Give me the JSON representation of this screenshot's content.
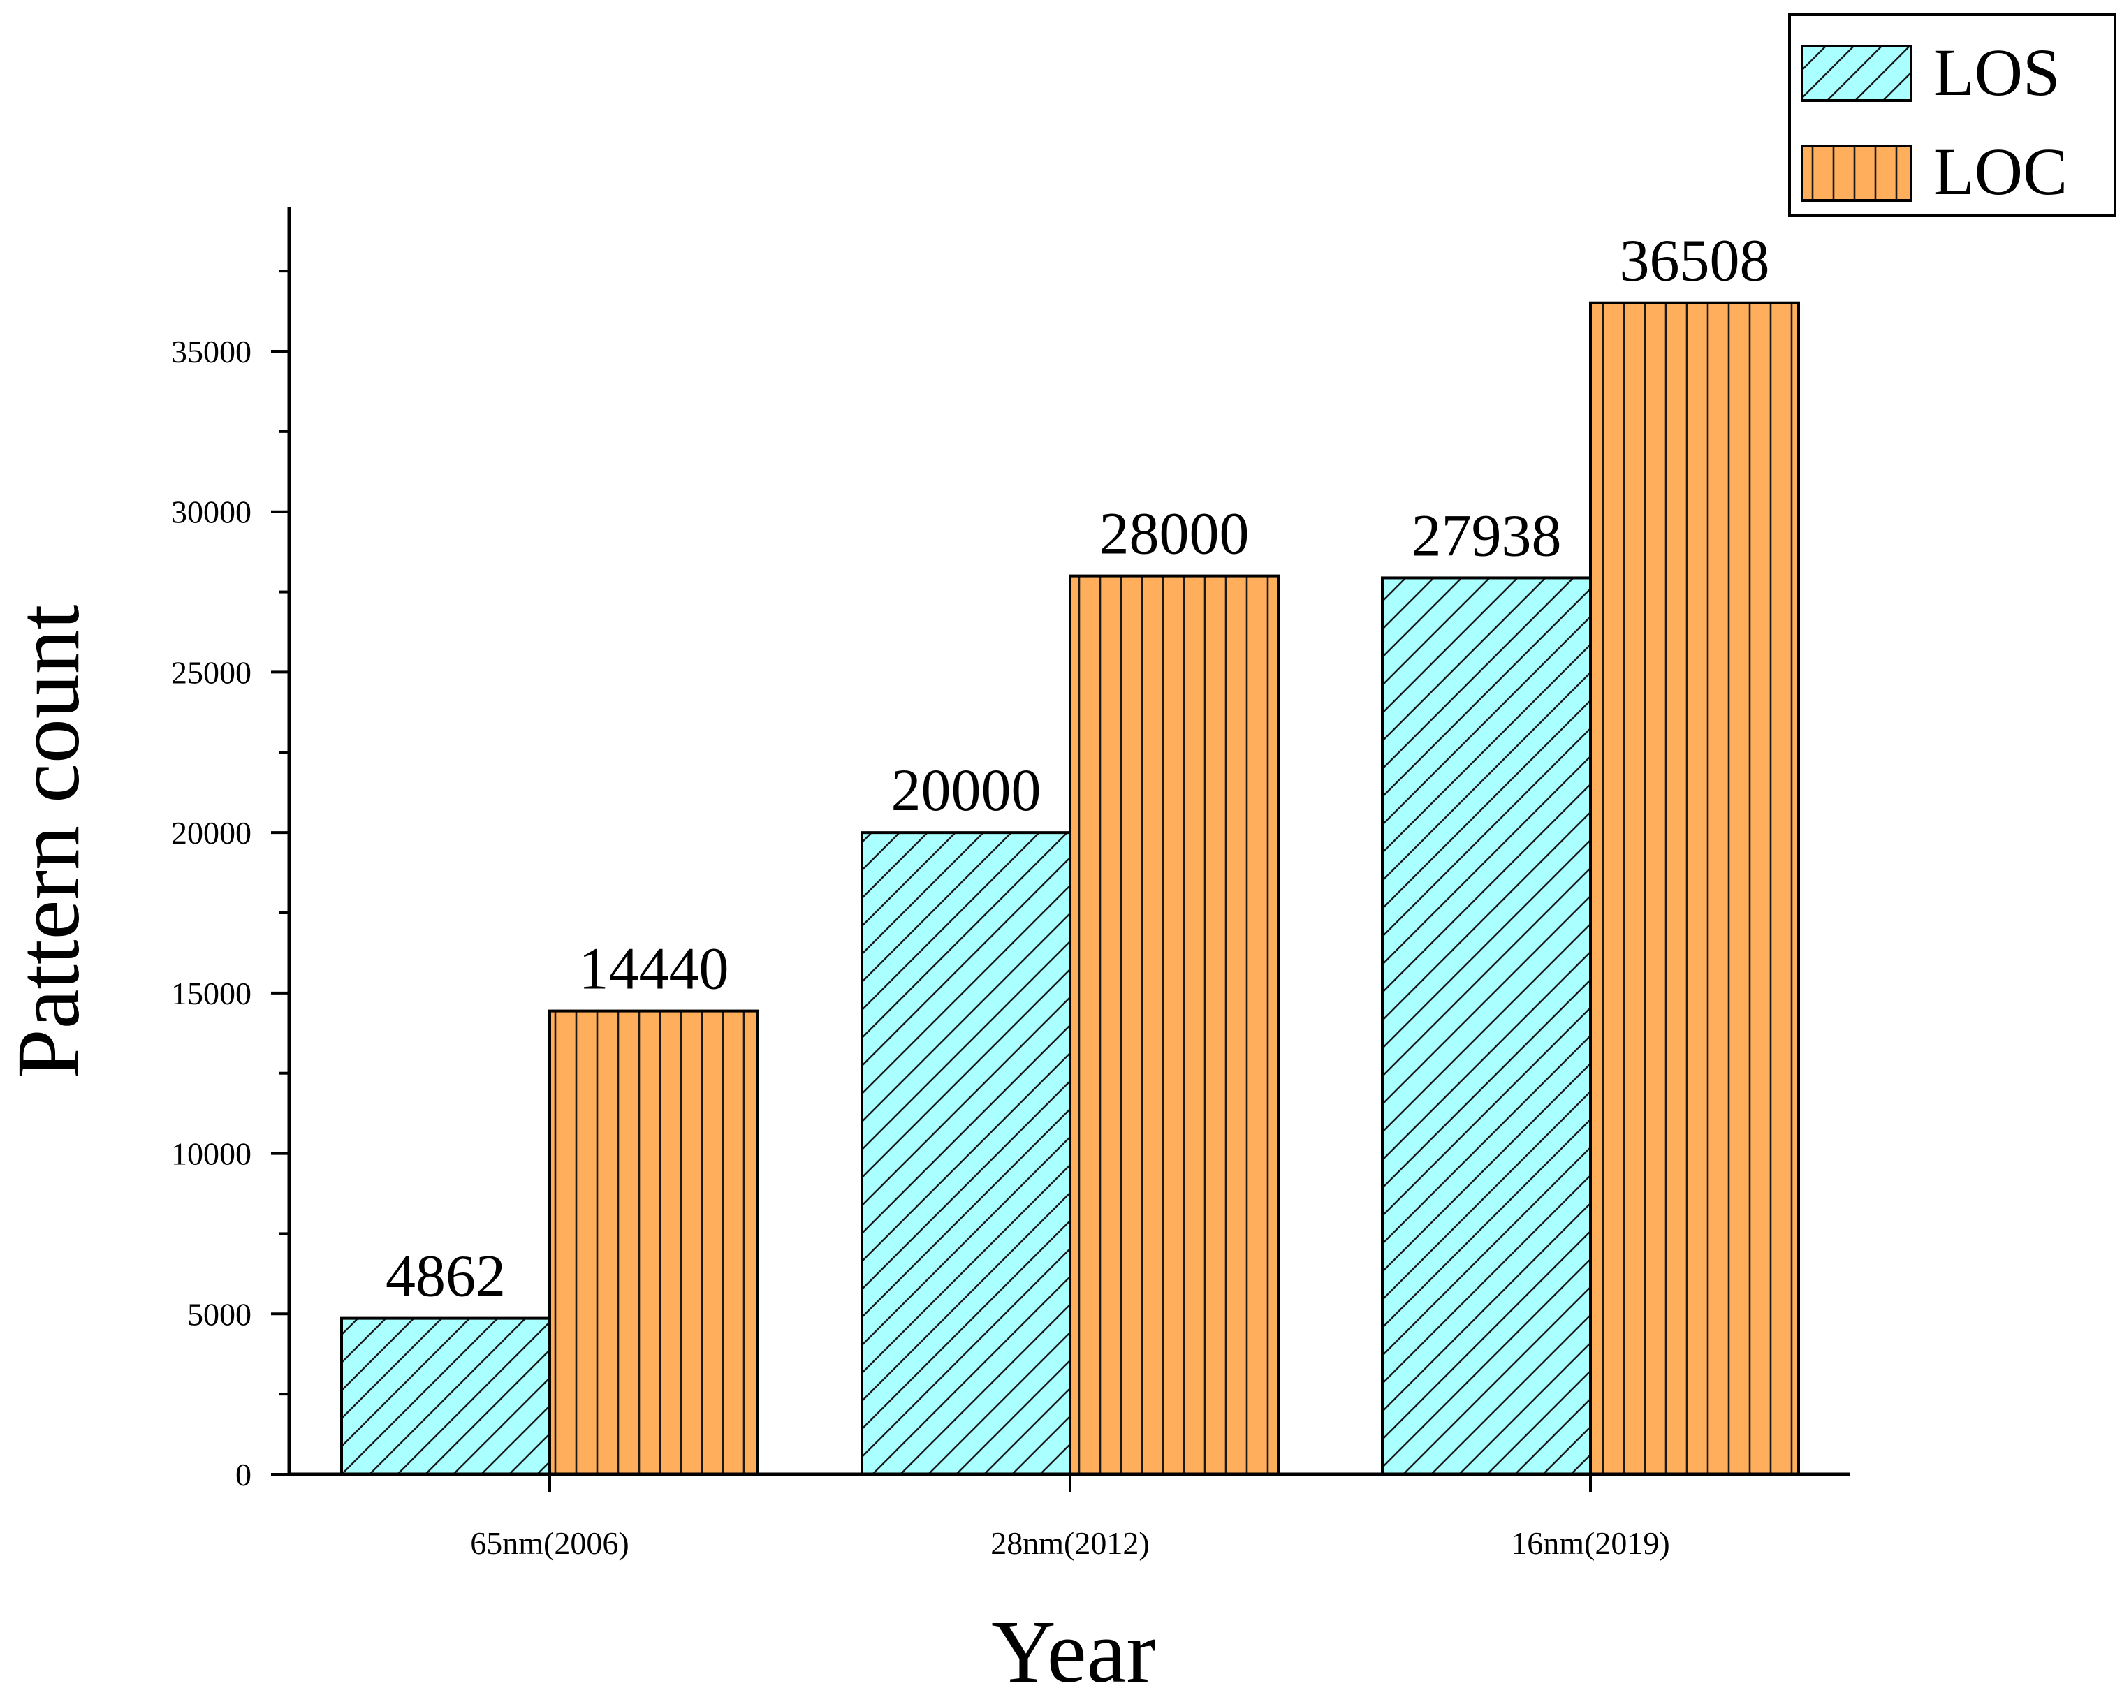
{
  "chart_data": {
    "type": "bar",
    "title": "",
    "xlabel": "Year",
    "ylabel": "Pattern count",
    "categories": [
      "65nm(2006)",
      "28nm(2012)",
      "16nm(2019)"
    ],
    "series": [
      {
        "name": "LOS",
        "values": [
          4862,
          20000,
          27938
        ],
        "labels": [
          "4862",
          "20000",
          "27938"
        ],
        "color": "#aaffff",
        "hatch": "diagonal"
      },
      {
        "name": "LOC",
        "values": [
          14440,
          28000,
          36508
        ],
        "labels": [
          "14440",
          "28000",
          "36508"
        ],
        "color": "#ffae5c",
        "hatch": "vertical"
      }
    ],
    "ylim": [
      0,
      39500
    ],
    "yticks": [
      0,
      5000,
      10000,
      15000,
      20000,
      25000,
      30000,
      35000
    ],
    "ytick_labels": [
      "0",
      "5000",
      "10000",
      "15000",
      "20000",
      "25000",
      "30000",
      "35000"
    ],
    "legend_position": "top-right",
    "grid": false
  }
}
